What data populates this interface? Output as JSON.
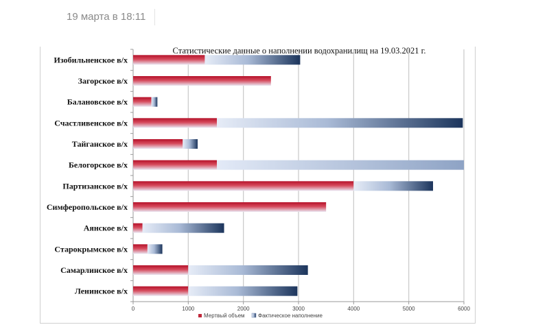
{
  "post": {
    "date": "19 марта в 18:11"
  },
  "chart_data": {
    "type": "bar",
    "orientation": "horizontal",
    "stacked": true,
    "title": "Статистические данные о наполнении водохранилищ на 19.03.2021 г.",
    "xlabel": "",
    "ylabel": "",
    "xlim": [
      0,
      6000
    ],
    "x_ticks": [
      "0",
      "1000",
      "2000",
      "3000",
      "4000",
      "5000",
      "6000"
    ],
    "grid": true,
    "legend_position": "bottom",
    "categories": [
      "Изобильненское в/х",
      "Загорское в/х",
      "Балановское в/х",
      "Счастливенское в/х",
      "Тайганское в/х",
      "Белогорское в/х",
      "Партизанское в/х",
      "Симферопольское в/х",
      "Аянское в/х",
      "Старокрымское в/х",
      "Самарлинское в/х",
      "Ленинское в/х"
    ],
    "series": [
      {
        "name": "Мертвый объем",
        "color": "#c0273a",
        "values": [
          1300,
          2500,
          330,
          1520,
          900,
          1520,
          4000,
          3500,
          170,
          260,
          1000,
          1000
        ]
      },
      {
        "name": "Фактическое наполнение",
        "color": "#1f3b63",
        "values": [
          1730,
          0,
          110,
          4460,
          270,
          4480,
          1440,
          0,
          1480,
          270,
          2170,
          1980
        ]
      }
    ]
  }
}
